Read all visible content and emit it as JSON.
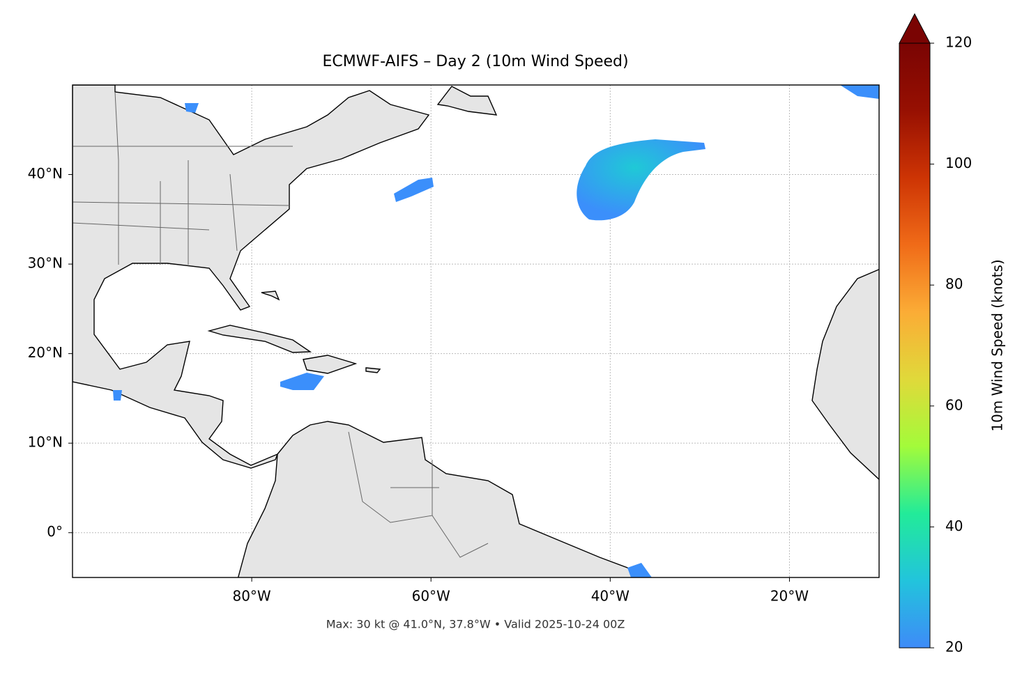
{
  "chart_data": {
    "type": "map",
    "title": "ECMWF-AIFS – Day 2 (10m Wind Speed)",
    "footer": "Max: 30 kt @ 41.0°N, 37.8°W • Valid 2025-10-24 00Z",
    "xlim": [
      -100,
      -10
    ],
    "xticks": [
      {
        "value": -80,
        "label": "80°W"
      },
      {
        "value": -60,
        "label": "60°W"
      },
      {
        "value": -40,
        "label": "40°W"
      },
      {
        "value": -20,
        "label": "20°W"
      }
    ],
    "ylim": [
      -5,
      50
    ],
    "yticks": [
      {
        "value": 0,
        "label": "0°"
      },
      {
        "value": 10,
        "label": "10°N"
      },
      {
        "value": 20,
        "label": "20°N"
      },
      {
        "value": 30,
        "label": "30°N"
      },
      {
        "value": 40,
        "label": "40°N"
      }
    ],
    "grid": true,
    "colorbar": {
      "label": "10m Wind Speed (knots)",
      "lim": [
        20,
        120
      ],
      "ticks": [
        20,
        40,
        60,
        80,
        100,
        120
      ],
      "colors": [
        "#3e8bf8",
        "#22c4dc",
        "#22eb99",
        "#a3fb3a",
        "#e0d93a",
        "#fbac36",
        "#f06b18",
        "#cd3404",
        "#971002",
        "#7a0403"
      ]
    }
  }
}
